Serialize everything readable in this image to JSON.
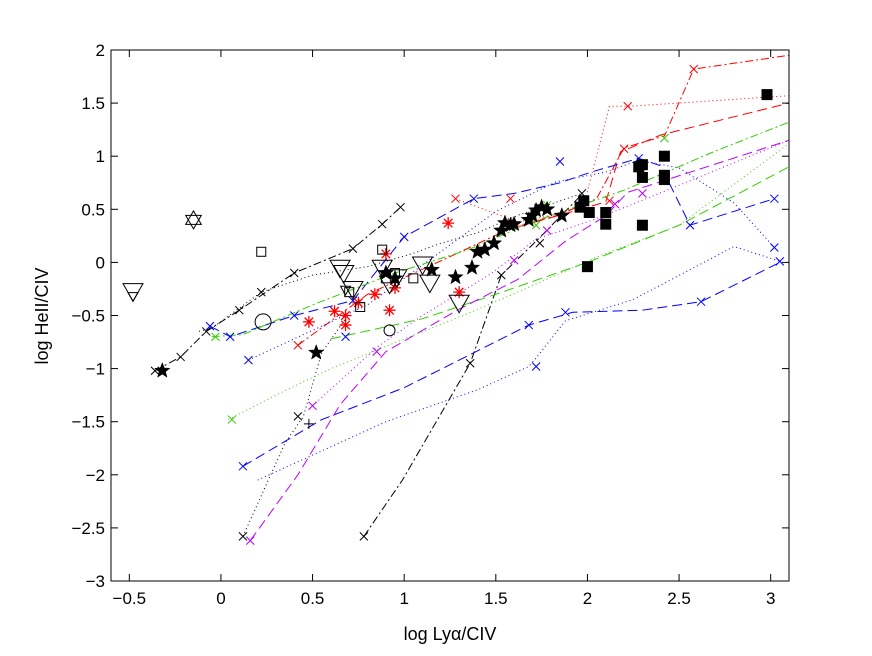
{
  "chart_data": {
    "type": "scatter",
    "title": "",
    "xlabel_pre": "log Ly",
    "xlabel_greek": "α",
    "xlabel_post": "/CIV",
    "ylabel": "log HeII/CIV",
    "xlim": [
      -0.6,
      3.1
    ],
    "ylim": [
      -3,
      2
    ],
    "grid": false,
    "xticks": [
      -0.5,
      0,
      0.5,
      1,
      1.5,
      2,
      2.5,
      3
    ],
    "xtick_labels": [
      "−0.5",
      "0",
      "0.5",
      "1",
      "1.5",
      "2",
      "2.5",
      "3"
    ],
    "yticks": [
      -3,
      -2.5,
      -2,
      -1.5,
      -1,
      -0.5,
      0,
      0.5,
      1,
      1.5,
      2
    ],
    "ytick_labels": [
      "−3",
      "−2.5",
      "−2",
      "−1.5",
      "−1",
      "−0.5",
      "0",
      "0.5",
      "1",
      "1.5",
      "2"
    ],
    "colors": {
      "black": "#000000",
      "red": "#ff0000",
      "blue": "#0000ff",
      "green": "#33cc00",
      "magenta": "#bb00ff"
    },
    "model_tracks": [
      {
        "color": "black",
        "dash": "8,3,2,3",
        "x": [
          -0.36,
          -0.22,
          -0.08,
          0.1,
          0.4,
          0.72,
          0.88,
          0.98
        ],
        "y": [
          -1.02,
          -0.89,
          -0.65,
          -0.45,
          -0.1,
          0.13,
          0.36,
          0.52
        ]
      },
      {
        "color": "black",
        "dash": "1,3",
        "x": [
          -0.12,
          -0.05,
          0.22,
          0.5,
          0.8,
          1.04,
          1.2,
          1.4,
          1.63,
          1.82,
          1.97
        ],
        "y": [
          -0.65,
          -0.62,
          -0.28,
          -0.12,
          -0.04,
          0.08,
          0.18,
          0.28,
          0.45,
          0.56,
          0.65
        ]
      },
      {
        "color": "black",
        "dash": "8,3,2,3",
        "x": [
          0.78,
          0.99,
          1.36,
          1.53,
          1.72,
          1.97
        ],
        "y": [
          -2.58,
          -2.05,
          -0.95,
          -0.12,
          0.2,
          0.64
        ]
      },
      {
        "color": "black",
        "dash": "1,3",
        "x": [
          0.12,
          0.35,
          0.45,
          0.55,
          0.68
        ],
        "y": [
          -2.58,
          -1.7,
          -1.45,
          -0.85,
          -0.53
        ]
      },
      {
        "color": "red",
        "dash": "8,3,2,3",
        "x": [
          0.42,
          0.8,
          1.22,
          1.58,
          1.85,
          2.05,
          2.2,
          2.42,
          2.58,
          3.1
        ],
        "y": [
          -0.78,
          -0.3,
          0.03,
          0.32,
          0.45,
          0.6,
          1.08,
          1.19,
          1.82,
          1.95
        ]
      },
      {
        "color": "red",
        "dash": "1,3",
        "x": [
          1.28,
          1.62,
          1.82,
          1.98,
          2.12,
          2.2,
          2.22,
          2.32,
          3.1
        ],
        "y": [
          0.6,
          0.38,
          0.45,
          0.54,
          1.47,
          1.47,
          1.47,
          1.48,
          1.57
        ]
      },
      {
        "color": "red",
        "dash": "10,5",
        "x": [
          1.55,
          1.9,
          2.1,
          2.18,
          2.4,
          3.1
        ],
        "y": [
          0.3,
          0.47,
          0.57,
          1.04,
          1.2,
          1.5
        ]
      },
      {
        "color": "blue",
        "dash": "10,5",
        "x": [
          -0.06,
          0.05,
          0.4,
          0.72,
          1.0,
          1.38,
          1.6,
          1.85,
          2.02,
          2.28,
          2.4,
          2.56,
          3.02
        ],
        "y": [
          -0.6,
          -0.7,
          -0.5,
          -0.36,
          0.24,
          0.6,
          0.65,
          0.75,
          0.85,
          0.98,
          0.91,
          0.35,
          0.6
        ]
      },
      {
        "color": "blue",
        "dash": "1,3",
        "x": [
          0.15,
          0.45,
          0.8,
          1.2,
          1.5,
          1.83,
          2.1,
          2.28,
          2.5,
          2.8,
          3.02
        ],
        "y": [
          -0.92,
          -0.68,
          -0.4,
          0.1,
          0.48,
          0.76,
          0.85,
          0.96,
          0.89,
          0.56,
          0.14
        ]
      },
      {
        "color": "blue",
        "dash": "10,5",
        "x": [
          0.12,
          0.55,
          1.0,
          1.68,
          1.92,
          2.3,
          2.62,
          3.05
        ],
        "y": [
          -1.92,
          -1.48,
          -1.18,
          -0.59,
          -0.47,
          -0.45,
          -0.37,
          0.0
        ]
      },
      {
        "color": "blue",
        "dash": "1,3",
        "x": [
          0.2,
          0.9,
          1.4,
          1.68,
          1.72,
          1.88,
          2.25,
          2.8,
          3.05
        ],
        "y": [
          -2.05,
          -1.5,
          -1.2,
          -0.98,
          -0.9,
          -0.55,
          -0.35,
          0.15,
          0.01
        ]
      },
      {
        "color": "green",
        "dash": "1,3",
        "x": [
          0.04,
          0.3,
          0.6,
          1.0,
          1.35,
          1.62,
          2.05,
          2.5,
          3.1
        ],
        "y": [
          -1.48,
          -1.25,
          -1.0,
          -0.72,
          -0.48,
          -0.28,
          0.05,
          0.35,
          1.12
        ]
      },
      {
        "color": "green",
        "dash": "8,3,2,3",
        "x": [
          -0.05,
          0.12,
          0.5,
          0.95,
          1.35,
          1.7,
          2.2,
          2.7,
          3.1
        ],
        "y": [
          -0.7,
          -0.68,
          -0.4,
          -0.1,
          0.12,
          0.38,
          0.68,
          1.05,
          1.32
        ]
      },
      {
        "color": "green",
        "dash": "10,5",
        "x": [
          0.6,
          1.1,
          1.5,
          2.0,
          2.5,
          3.1
        ],
        "y": [
          -0.72,
          -0.53,
          -0.3,
          0.0,
          0.35,
          0.9
        ]
      },
      {
        "color": "magenta",
        "dash": "10,5",
        "x": [
          0.16,
          0.42,
          0.65,
          0.9,
          1.3,
          1.62,
          1.88,
          2.1,
          2.22,
          2.4,
          3.1
        ],
        "y": [
          -2.62,
          -2.0,
          -1.34,
          -0.84,
          -0.44,
          -0.16,
          0.2,
          0.44,
          0.66,
          0.76,
          1.15
        ]
      },
      {
        "color": "magenta",
        "dash": "1,3",
        "x": [
          0.5,
          0.85,
          1.1,
          1.48,
          1.72,
          2.0,
          2.25,
          3.1
        ],
        "y": [
          -1.35,
          -0.8,
          -0.5,
          -0.1,
          0.22,
          0.38,
          0.55,
          1.15
        ]
      }
    ],
    "track_markers": [
      {
        "color": "black",
        "x": [
          -0.36,
          -0.22,
          -0.08,
          0.1,
          0.4,
          0.72,
          0.88,
          0.98,
          0.78,
          1.36,
          1.53,
          0.12,
          0.42,
          0.22,
          1.97,
          1.74
        ],
        "y": [
          -1.02,
          -0.89,
          -0.65,
          -0.45,
          -0.1,
          0.13,
          0.36,
          0.52,
          -2.58,
          -0.95,
          -0.12,
          -2.58,
          -1.45,
          -0.28,
          0.65,
          0.18
        ]
      },
      {
        "color": "red",
        "x": [
          0.42,
          1.28,
          2.22,
          2.58,
          2.2,
          1.58,
          2.12
        ],
        "y": [
          -0.78,
          0.6,
          1.47,
          1.82,
          1.07,
          0.6,
          0.58
        ]
      },
      {
        "color": "blue",
        "x": [
          -0.06,
          0.05,
          0.15,
          0.12,
          0.4,
          0.72,
          1.0,
          1.38,
          1.85,
          2.28,
          2.56,
          3.02,
          3.02,
          3.05,
          2.62,
          1.68,
          1.88,
          1.72,
          0.68
        ],
        "y": [
          -0.6,
          -0.7,
          -0.92,
          -1.92,
          -0.5,
          -0.36,
          0.24,
          0.6,
          0.95,
          0.98,
          0.35,
          0.6,
          0.14,
          0.01,
          -0.37,
          -0.59,
          -0.47,
          -0.98,
          -0.7
        ]
      },
      {
        "color": "green",
        "x": [
          0.06,
          -0.03,
          2.42,
          1.78,
          1.72
        ],
        "y": [
          -1.48,
          -0.7,
          1.17,
          0.54,
          0.35
        ]
      },
      {
        "color": "magenta",
        "x": [
          0.16,
          0.5,
          0.85,
          2.15,
          2.3,
          1.6,
          1.78
        ],
        "y": [
          -2.62,
          -1.35,
          -0.84,
          0.55,
          0.65,
          0.02,
          0.3
        ]
      }
    ],
    "red_asterisk": {
      "x": [
        0.48,
        0.62,
        0.68,
        0.75,
        0.84,
        0.9,
        0.92,
        0.95,
        1.24,
        1.3,
        0.68
      ],
      "y": [
        -0.56,
        -0.46,
        -0.5,
        -0.38,
        -0.3,
        0.08,
        -0.45,
        -0.24,
        0.37,
        -0.28,
        -0.59
      ]
    },
    "filled_stars": {
      "x": [
        -0.32,
        0.52,
        0.9,
        0.95,
        1.15,
        1.28,
        1.37,
        1.4,
        1.44,
        1.49,
        1.53,
        1.55,
        1.58,
        1.6,
        1.68,
        1.7,
        1.72,
        1.75,
        1.78,
        1.86
      ],
      "y": [
        -1.02,
        -0.85,
        -0.1,
        -0.15,
        -0.07,
        -0.14,
        -0.05,
        0.1,
        0.12,
        0.18,
        0.3,
        0.37,
        0.35,
        0.36,
        0.4,
        0.44,
        0.49,
        0.52,
        0.5,
        0.44
      ]
    },
    "filled_squares": {
      "x": [
        1.96,
        1.98,
        2.0,
        2.01,
        2.1,
        2.1,
        2.28,
        2.3,
        2.3,
        2.42,
        2.42,
        2.42,
        2.3,
        2.98
      ],
      "y": [
        0.52,
        0.58,
        -0.04,
        0.47,
        0.47,
        0.36,
        0.9,
        0.92,
        0.8,
        1.0,
        0.82,
        0.78,
        0.35,
        1.58
      ]
    },
    "open_triangles_down": {
      "x": [
        -0.48,
        0.65,
        0.67,
        0.72,
        0.88,
        0.92,
        0.96,
        1.1,
        1.14,
        1.3
      ],
      "y": [
        -0.27,
        -0.05,
        -0.1,
        -0.25,
        -0.05,
        -0.2,
        -0.14,
        -0.02,
        -0.19,
        -0.38
      ]
    },
    "small_triangles_down": {
      "x": [
        -0.48,
        0.68
      ],
      "y": [
        -0.32,
        -0.26
      ]
    },
    "open_squares": {
      "x": [
        0.22,
        0.88,
        0.9,
        0.7,
        0.76,
        0.95,
        1.05
      ],
      "y": [
        0.1,
        0.12,
        -0.15,
        -0.28,
        -0.42,
        -0.1,
        -0.15
      ]
    },
    "open_circles": {
      "x": [
        0.23,
        0.92
      ],
      "y": [
        -0.56,
        -0.64
      ]
    },
    "open_hexagram": {
      "x": [
        -0.15
      ],
      "y": [
        0.4
      ]
    },
    "plus_markers": {
      "x": [
        0.48
      ],
      "y": [
        -1.52
      ]
    }
  }
}
